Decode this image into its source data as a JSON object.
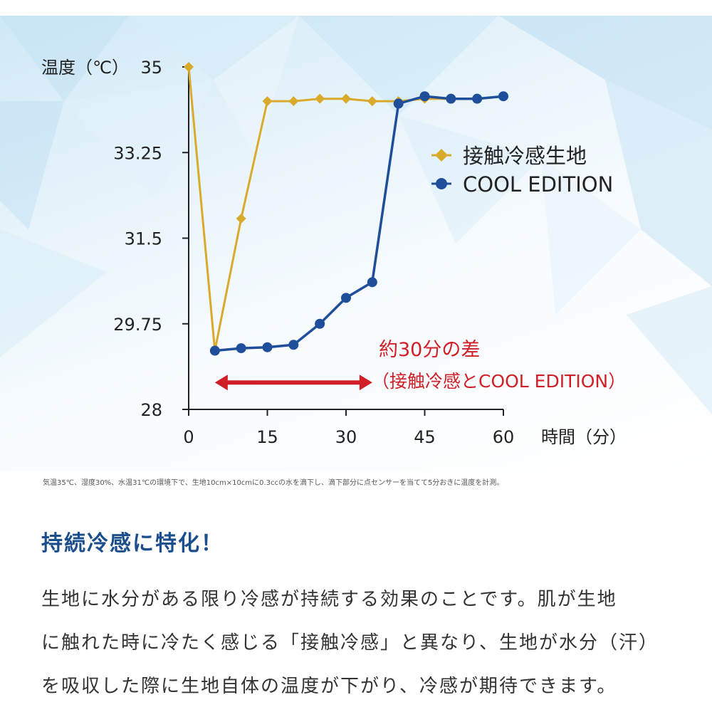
{
  "chart_data": {
    "type": "line",
    "ylabel": "温度（℃）",
    "xlabel": "時間（分）",
    "ylim": [
      28,
      35
    ],
    "xlim": [
      0,
      60
    ],
    "yticks": [
      "35",
      "33.25",
      "31.5",
      "29.75",
      "28"
    ],
    "xticks": [
      "0",
      "15",
      "30",
      "45",
      "60"
    ],
    "legend_position": "right",
    "series": [
      {
        "name": "接触冷感生地",
        "color": "#d9aa2b",
        "marker": "diamond",
        "x": [
          0,
          5,
          10,
          15,
          20,
          25,
          30,
          35,
          40,
          45,
          50,
          55,
          60
        ],
        "y": [
          35.0,
          29.2,
          31.9,
          34.3,
          34.3,
          34.35,
          34.35,
          34.3,
          34.3,
          34.35,
          34.35,
          34.35,
          34.4
        ]
      },
      {
        "name": "COOL EDITION",
        "color": "#1f4f9a",
        "marker": "circle",
        "x": [
          5,
          10,
          15,
          20,
          25,
          30,
          35,
          40,
          45,
          50,
          55,
          60
        ],
        "y": [
          29.2,
          29.25,
          29.27,
          29.32,
          29.75,
          30.28,
          30.6,
          34.25,
          34.4,
          34.35,
          34.35,
          34.4
        ]
      }
    ],
    "annotation": {
      "line1": "約30分の差",
      "line2": "（接触冷感とCOOL EDITION）",
      "color": "#d01f27",
      "x_from": 5,
      "x_to": 35,
      "y": 28.55
    }
  },
  "footnote": "気温35℃、湿度30%、水温31℃の環境下で、生地10cm×10cmに0.3ccの水を滴下し、滴下部分に点センサーを当てて5分おきに温度を計測。",
  "heading": "持続冷感に特化！",
  "body_lines": [
    "生地に水分がある限り冷感が持続する効果のことです。肌が生地",
    "に触れた時に冷たく感じる「接触冷感」と異なり、生地が水分（汗）",
    "を吸収した際に生地自体の温度が下がり、冷感が期待できます。"
  ]
}
